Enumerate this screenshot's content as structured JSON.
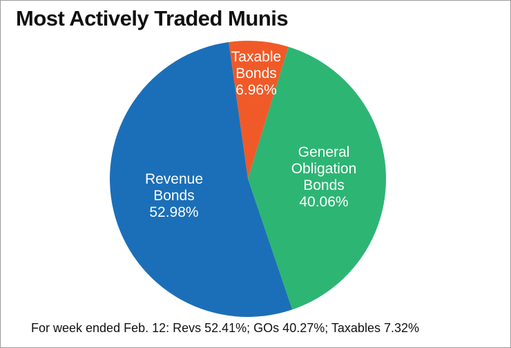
{
  "chart_data": {
    "type": "pie",
    "title": "Most Actively Traded Munis",
    "categories": [
      "Taxable Bonds",
      "General Obligation Bonds",
      "Revenue Bonds"
    ],
    "values": [
      6.96,
      40.06,
      52.98
    ],
    "value_labels": [
      "6.96%",
      "40.06%",
      "52.98%"
    ],
    "colors": [
      "#f05a28",
      "#2db574",
      "#1b6fb8"
    ],
    "note": "For week ended Feb. 12: Revs 52.41%; GOs 40.27%; Taxables 7.32%"
  }
}
